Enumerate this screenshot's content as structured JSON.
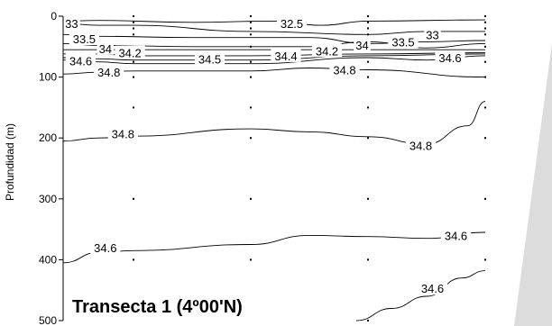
{
  "chart_data": {
    "type": "contour",
    "title": "Transecta 1 (4º00'N)",
    "ylabel": "Profundidad (m)",
    "ylim": [
      500,
      0
    ],
    "yticks": [
      0,
      100,
      200,
      300,
      400,
      500
    ],
    "background": "#ffffff",
    "seabed_color": "#dcdcdc",
    "stations": [
      1,
      2,
      3,
      4,
      5
    ],
    "sample_depths": [
      [
        0,
        10,
        20,
        30,
        50,
        75,
        100,
        150,
        200,
        300,
        400,
        500
      ],
      [
        0,
        10,
        20,
        30,
        50,
        75,
        100,
        150,
        200,
        300,
        400
      ],
      [
        0,
        10,
        20,
        30,
        50,
        75,
        100,
        150,
        200,
        300,
        400
      ],
      [
        0,
        10,
        20,
        30,
        50,
        75,
        100,
        150,
        200,
        300,
        400,
        500
      ],
      [
        0,
        10,
        20,
        30,
        50,
        75,
        100,
        150,
        200,
        300,
        400
      ]
    ],
    "contours": [
      {
        "value": 32.5,
        "label": "32.5",
        "x": [
          1.0,
          1.5,
          2.5,
          3.2,
          3.6,
          4.0,
          5.0
        ],
        "y": [
          8,
          7,
          10,
          8,
          15,
          8,
          6
        ],
        "labels_at": [
          [
            3.35,
            12
          ]
        ]
      },
      {
        "value": 33,
        "label": "33",
        "x": [
          1.0,
          1.5,
          2.0,
          3.0,
          4.0,
          4.5,
          5.0
        ],
        "y": [
          12,
          15,
          15,
          25,
          30,
          25,
          25
        ],
        "labels_at": [
          [
            1.12,
            12
          ],
          [
            4.55,
            30
          ]
        ]
      },
      {
        "value": 33.5,
        "label": "33.5",
        "x": [
          1.0,
          1.5,
          2.5,
          3.5,
          4.0,
          4.5,
          5.0
        ],
        "y": [
          30,
          33,
          35,
          35,
          45,
          42,
          40
        ],
        "labels_at": [
          [
            1.3,
            37
          ],
          [
            4.3,
            42
          ]
        ]
      },
      {
        "value": 34,
        "label": "34",
        "x": [
          1.0,
          1.5,
          2.5,
          3.5,
          4.0,
          4.5,
          5.0
        ],
        "y": [
          45,
          48,
          50,
          50,
          42,
          52,
          45
        ],
        "labels_at": [
          [
            1.6,
            53
          ],
          [
            3.95,
            47
          ]
        ]
      },
      {
        "value": 34.2,
        "label": "34.2",
        "x": [
          1.0,
          1.5,
          2.0,
          3.0,
          3.5,
          4.0,
          5.0
        ],
        "y": [
          55,
          55,
          55,
          55,
          55,
          55,
          55
        ],
        "labels_at": [
          [
            1.95,
            60
          ],
          [
            3.65,
            57
          ]
        ]
      },
      {
        "value": 34.4,
        "label": "34.4",
        "x": [
          1.0,
          1.5,
          2.0,
          3.0,
          4.0,
          5.0
        ],
        "y": [
          62,
          62,
          65,
          65,
          62,
          60
        ],
        "labels_at": [
          [
            3.3,
            65
          ]
        ]
      },
      {
        "value": 34.5,
        "label": "34.5",
        "x": [
          1.0,
          1.5,
          2.0,
          3.0,
          4.0,
          5.0
        ],
        "y": [
          68,
          70,
          72,
          72,
          65,
          62
        ],
        "labels_at": [
          [
            2.65,
            70
          ]
        ]
      },
      {
        "value": 34.6,
        "label": "34.6",
        "x": [
          1.0,
          1.5,
          2.0,
          3.0,
          4.0,
          4.5,
          5.0
        ],
        "y": [
          72,
          75,
          78,
          78,
          68,
          72,
          65
        ],
        "labels_at": [
          [
            1.25,
            73
          ],
          [
            4.7,
            68
          ]
        ]
      },
      {
        "value": 34.8,
        "label": "34.8",
        "x": [
          1.0,
          1.5,
          2.0,
          3.0,
          3.5,
          4.0,
          5.0
        ],
        "y": [
          95,
          92,
          90,
          90,
          85,
          88,
          100
        ],
        "labels_at": [
          [
            1.65,
            92
          ],
          [
            3.8,
            88
          ]
        ]
      },
      {
        "value": 34.8,
        "label": "34.8",
        "x": [
          1.0,
          1.5,
          2.0,
          3.0,
          3.5,
          4.0,
          4.5,
          4.85,
          5.0
        ],
        "y": [
          205,
          200,
          197,
          185,
          190,
          198,
          210,
          180,
          140
        ],
        "labels_at": [
          [
            1.85,
            193
          ],
          [
            4.45,
            212
          ]
        ]
      },
      {
        "value": 34.6,
        "label": "34.6",
        "x": [
          1.0,
          1.5,
          2.0,
          3.0,
          3.5,
          4.0,
          4.5,
          5.0
        ],
        "y": [
          405,
          388,
          385,
          375,
          360,
          362,
          365,
          355
        ],
        "labels_at": [
          [
            1.6,
            380
          ],
          [
            4.75,
            360
          ]
        ]
      },
      {
        "value": 34.6,
        "label": "34.6",
        "x": [
          3.9,
          4.2,
          4.5,
          4.8,
          5.0
        ],
        "y": [
          500,
          480,
          460,
          430,
          418
        ],
        "labels_at": [
          [
            4.55,
            447
          ]
        ]
      }
    ]
  }
}
